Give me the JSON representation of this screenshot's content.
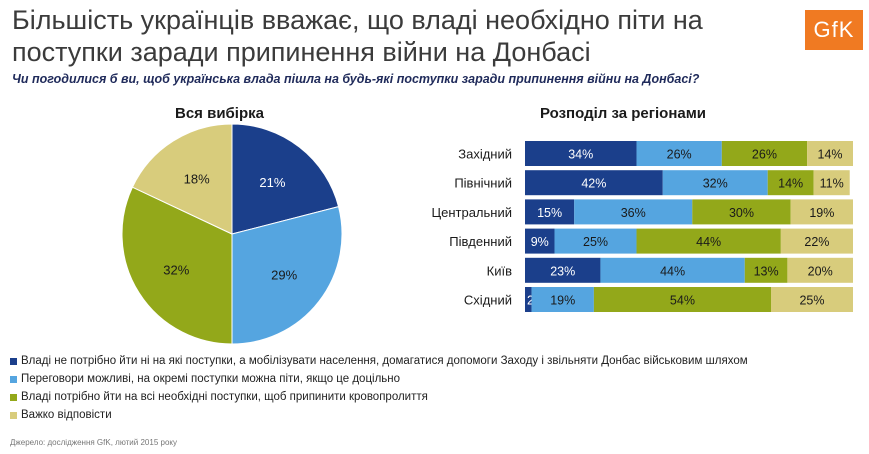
{
  "title": "Більшість українців вважає, що владі необхідно піти на поступки заради припинення війни на Донбасі",
  "logo": "GfK",
  "subtitle": "Чи погодилися б ви, щоб українська влада пішла на будь-які поступки заради припинення війни на Донбасі?",
  "source": "Джерело: дослідження GfK, лютий 2015 року",
  "colors": {
    "dark_blue": "#1b3f8b",
    "light_blue": "#55a5e0",
    "olive": "#93a81a",
    "khaki": "#d8cc7c",
    "logo_orange": "#f07a22"
  },
  "chart_data": [
    {
      "type": "pie",
      "title": "Вся вибірка",
      "categories": [
        "Владі не потрібно йти ні на які поступки, а мобілізувати населення, домагатися допомоги Заходу і звільняти Донбас військовим шляхом",
        "Переговори можливі, на окремі поступки можна піти, якщо це доцільно",
        "Владі потрібно йти на всі необхідні поступки, щоб припинити кровопролиття",
        "Важко відповісти"
      ],
      "values": [
        21,
        29,
        32,
        18
      ],
      "labels": [
        "21%",
        "29%",
        "32%",
        "18%"
      ]
    },
    {
      "type": "bar",
      "orientation": "horizontal",
      "stacked": true,
      "title": "Розподіл за регіонами",
      "categories": [
        "Західний",
        "Північний",
        "Центральний",
        "Південний",
        "Київ",
        "Східний"
      ],
      "series": [
        {
          "name": "Владі не потрібно йти ні на які поступки, а мобілізувати населення, домагатися допомоги Заходу і звільняти Донбас військовим шляхом",
          "values": [
            34,
            42,
            15,
            9,
            23,
            2
          ]
        },
        {
          "name": "Переговори можливі, на окремі поступки можна піти, якщо це доцільно",
          "values": [
            26,
            32,
            36,
            25,
            44,
            19
          ]
        },
        {
          "name": "Владі потрібно йти на всі необхідні поступки, щоб припинити кровопролиття",
          "values": [
            26,
            14,
            30,
            44,
            13,
            54
          ]
        },
        {
          "name": "Важко відповісти",
          "values": [
            14,
            11,
            19,
            22,
            20,
            25
          ]
        }
      ]
    }
  ]
}
